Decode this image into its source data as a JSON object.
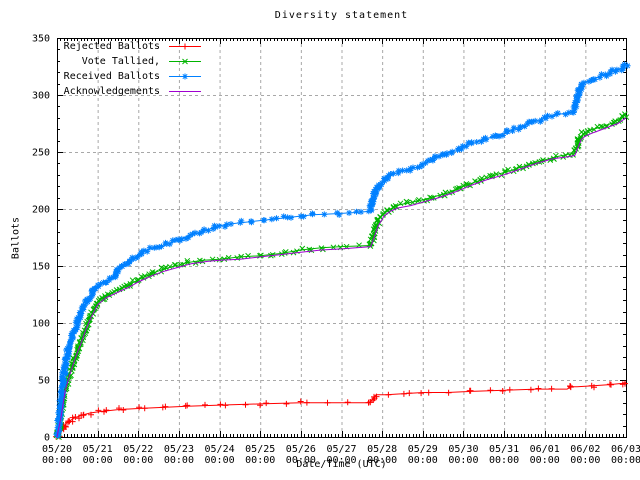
{
  "chart_data": {
    "type": "line",
    "title": "Diversity statement",
    "xlabel": "Date/Time (UTC)",
    "ylabel": "Ballots",
    "ylim": [
      0,
      350
    ],
    "y_tick_step": 50,
    "y_tick_labels": [
      "0",
      "50",
      "100",
      "150",
      "200",
      "250",
      "300",
      "350"
    ],
    "x_range_days": [
      0,
      14
    ],
    "x_ticks": [
      {
        "date": "05/20",
        "time": "00:00"
      },
      {
        "date": "05/21",
        "time": "00:00"
      },
      {
        "date": "05/22",
        "time": "00:00"
      },
      {
        "date": "05/23",
        "time": "00:00"
      },
      {
        "date": "05/24",
        "time": "00:00"
      },
      {
        "date": "05/25",
        "time": "00:00"
      },
      {
        "date": "05/26",
        "time": "00:00"
      },
      {
        "date": "05/27",
        "time": "00:00"
      },
      {
        "date": "05/28",
        "time": "00:00"
      },
      {
        "date": "05/29",
        "time": "00:00"
      },
      {
        "date": "05/30",
        "time": "00:00"
      },
      {
        "date": "05/31",
        "time": "00:00"
      },
      {
        "date": "06/01",
        "time": "00:00"
      },
      {
        "date": "06/02",
        "time": "00:00"
      },
      {
        "date": "06/03",
        "time": "00:00"
      }
    ],
    "grid": true,
    "legend_position": "top-left-inside",
    "colors": {
      "background": "#ffffff",
      "border": "#000000",
      "grid": "#a8a8a8",
      "text": "#000000"
    },
    "series": [
      {
        "name": "Rejected Ballots",
        "color": "#ff0000",
        "marker": "plus",
        "points": [
          [
            0,
            0
          ],
          [
            0.05,
            3
          ],
          [
            0.1,
            6
          ],
          [
            0.2,
            11
          ],
          [
            0.3,
            14
          ],
          [
            0.45,
            17
          ],
          [
            0.6,
            19
          ],
          [
            0.8,
            21
          ],
          [
            1,
            22
          ],
          [
            1.5,
            24
          ],
          [
            2,
            25
          ],
          [
            2.6,
            26
          ],
          [
            3.2,
            27
          ],
          [
            4,
            28
          ],
          [
            5,
            29
          ],
          [
            6,
            30
          ],
          [
            7.7,
            30
          ],
          [
            7.76,
            33
          ],
          [
            7.85,
            37
          ],
          [
            8.1,
            37
          ],
          [
            8.5,
            38
          ],
          [
            9,
            39
          ],
          [
            9.6,
            39
          ],
          [
            10.2,
            40
          ],
          [
            11,
            41
          ],
          [
            11.8,
            42
          ],
          [
            12.55,
            42
          ],
          [
            12.65,
            44
          ],
          [
            12.8,
            44
          ],
          [
            13.2,
            45
          ],
          [
            13.6,
            46
          ],
          [
            13.9,
            47
          ],
          [
            14,
            48
          ]
        ]
      },
      {
        "name": "Vote Tallied,",
        "color": "#00b400",
        "marker": "cross",
        "points": [
          [
            0,
            0
          ],
          [
            0.05,
            8
          ],
          [
            0.1,
            20
          ],
          [
            0.15,
            32
          ],
          [
            0.2,
            42
          ],
          [
            0.3,
            55
          ],
          [
            0.4,
            66
          ],
          [
            0.5,
            76
          ],
          [
            0.6,
            85
          ],
          [
            0.7,
            95
          ],
          [
            0.8,
            104
          ],
          [
            0.9,
            111
          ],
          [
            1,
            118
          ],
          [
            1.2,
            124
          ],
          [
            1.5,
            129
          ],
          [
            1.8,
            134
          ],
          [
            2,
            138
          ],
          [
            2.3,
            143
          ],
          [
            2.6,
            147
          ],
          [
            3,
            151
          ],
          [
            3.2,
            153
          ],
          [
            3.6,
            155
          ],
          [
            4,
            156
          ],
          [
            4.5,
            158
          ],
          [
            5,
            159
          ],
          [
            5.5,
            161
          ],
          [
            6,
            164
          ],
          [
            6.5,
            166
          ],
          [
            7,
            167
          ],
          [
            7.72,
            168
          ],
          [
            7.78,
            175
          ],
          [
            7.85,
            185
          ],
          [
            7.95,
            193
          ],
          [
            8.05,
            196
          ],
          [
            8.2,
            200
          ],
          [
            8.35,
            203
          ],
          [
            8.6,
            205
          ],
          [
            9,
            208
          ],
          [
            9.3,
            211
          ],
          [
            9.6,
            214
          ],
          [
            10,
            220
          ],
          [
            10.4,
            225
          ],
          [
            10.8,
            230
          ],
          [
            11.2,
            234
          ],
          [
            11.6,
            239
          ],
          [
            12,
            243
          ],
          [
            12.3,
            246
          ],
          [
            12.72,
            249
          ],
          [
            12.78,
            255
          ],
          [
            12.88,
            263
          ],
          [
            12.95,
            266
          ],
          [
            13.1,
            269
          ],
          [
            13.4,
            272
          ],
          [
            13.7,
            276
          ],
          [
            13.9,
            280
          ],
          [
            14,
            283
          ]
        ]
      },
      {
        "name": "Received Ballots",
        "color": "#0080ff",
        "marker": "asterisk",
        "points": [
          [
            0,
            0
          ],
          [
            0.04,
            12
          ],
          [
            0.08,
            28
          ],
          [
            0.12,
            42
          ],
          [
            0.16,
            54
          ],
          [
            0.2,
            64
          ],
          [
            0.25,
            72
          ],
          [
            0.3,
            80
          ],
          [
            0.4,
            91
          ],
          [
            0.5,
            100
          ],
          [
            0.6,
            109
          ],
          [
            0.7,
            117
          ],
          [
            0.8,
            123
          ],
          [
            0.9,
            128
          ],
          [
            1,
            132
          ],
          [
            1.2,
            136
          ],
          [
            1.4,
            139
          ],
          [
            1.55,
            149
          ],
          [
            1.7,
            152
          ],
          [
            1.85,
            156
          ],
          [
            2,
            160
          ],
          [
            2.2,
            164
          ],
          [
            2.5,
            167
          ],
          [
            2.8,
            170
          ],
          [
            3,
            173
          ],
          [
            3.2,
            176
          ],
          [
            3.5,
            179
          ],
          [
            3.8,
            183
          ],
          [
            3.95,
            185
          ],
          [
            4.3,
            187
          ],
          [
            4.8,
            189
          ],
          [
            5.3,
            191
          ],
          [
            5.8,
            193
          ],
          [
            6.3,
            195
          ],
          [
            6.9,
            196
          ],
          [
            7.4,
            197
          ],
          [
            7.7,
            198
          ],
          [
            7.76,
            206
          ],
          [
            7.82,
            214
          ],
          [
            7.9,
            220
          ],
          [
            8,
            224
          ],
          [
            8.15,
            228
          ],
          [
            8.3,
            231
          ],
          [
            8.6,
            234
          ],
          [
            8.9,
            237
          ],
          [
            9.1,
            241
          ],
          [
            9.3,
            245
          ],
          [
            9.6,
            249
          ],
          [
            9.9,
            253
          ],
          [
            10.2,
            258
          ],
          [
            10.5,
            261
          ],
          [
            10.8,
            264
          ],
          [
            11.1,
            268
          ],
          [
            11.4,
            272
          ],
          [
            11.7,
            276
          ],
          [
            12,
            280
          ],
          [
            12.2,
            282
          ],
          [
            12.5,
            284
          ],
          [
            12.7,
            285
          ],
          [
            12.78,
            294
          ],
          [
            12.84,
            303
          ],
          [
            12.92,
            309
          ],
          [
            13.05,
            312
          ],
          [
            13.25,
            315
          ],
          [
            13.5,
            318
          ],
          [
            13.7,
            321
          ],
          [
            13.85,
            323
          ],
          [
            14,
            327
          ]
        ]
      },
      {
        "name": "Acknowledgements",
        "color": "#a000d0",
        "marker": "none",
        "points": [
          [
            0,
            0
          ],
          [
            0.1,
            18
          ],
          [
            0.2,
            40
          ],
          [
            0.3,
            53
          ],
          [
            0.4,
            64
          ],
          [
            0.5,
            74
          ],
          [
            0.6,
            83
          ],
          [
            0.7,
            93
          ],
          [
            0.8,
            102
          ],
          [
            0.9,
            109
          ],
          [
            1,
            116
          ],
          [
            1.2,
            122
          ],
          [
            1.5,
            127
          ],
          [
            1.8,
            132
          ],
          [
            2,
            136
          ],
          [
            2.3,
            141
          ],
          [
            2.6,
            145
          ],
          [
            3,
            149
          ],
          [
            3.3,
            152
          ],
          [
            3.7,
            154
          ],
          [
            4,
            155
          ],
          [
            4.5,
            156
          ],
          [
            5,
            158
          ],
          [
            5.5,
            160
          ],
          [
            6,
            162
          ],
          [
            6.5,
            164
          ],
          [
            7,
            165
          ],
          [
            7.72,
            167
          ],
          [
            7.9,
            185
          ],
          [
            8.05,
            194
          ],
          [
            8.2,
            198
          ],
          [
            8.4,
            201
          ],
          [
            8.7,
            203
          ],
          [
            9,
            206
          ],
          [
            9.4,
            210
          ],
          [
            9.8,
            215
          ],
          [
            10.2,
            221
          ],
          [
            10.6,
            226
          ],
          [
            11,
            230
          ],
          [
            11.4,
            235
          ],
          [
            11.8,
            240
          ],
          [
            12.2,
            244
          ],
          [
            12.6,
            246
          ],
          [
            12.74,
            247
          ],
          [
            12.9,
            261
          ],
          [
            13,
            264
          ],
          [
            13.2,
            267
          ],
          [
            13.5,
            271
          ],
          [
            13.8,
            275
          ],
          [
            14,
            280
          ]
        ]
      }
    ]
  }
}
